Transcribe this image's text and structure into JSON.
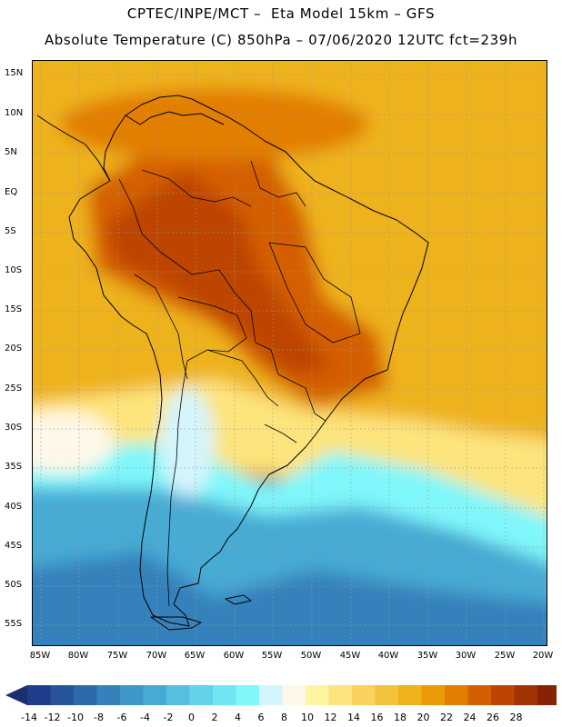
{
  "header": {
    "line1": "CPTEC/INPE/MCT –  Eta Model 15km – GFS",
    "line2": "Absolute Temperature (C) 850hPa – 07/06/2020 12UTC fct=239h"
  },
  "map": {
    "lat_labels": [
      "15N",
      "10N",
      "5N",
      "EQ",
      "5S",
      "10S",
      "15S",
      "20S",
      "25S",
      "30S",
      "35S",
      "40S",
      "45S",
      "50S",
      "55S"
    ],
    "lon_labels": [
      "85W",
      "80W",
      "75W",
      "70W",
      "65W",
      "60W",
      "55W",
      "50W",
      "45W",
      "40W",
      "35W",
      "30W",
      "25W",
      "20W"
    ]
  },
  "colorbar": {
    "labels": [
      "-14",
      "-12",
      "-10",
      "-8",
      "-6",
      "-4",
      "-2",
      "0",
      "2",
      "4",
      "6",
      "8",
      "10",
      "12",
      "14",
      "16",
      "18",
      "20",
      "22",
      "24",
      "26",
      "28"
    ],
    "colors": [
      "#1f3d8a",
      "#27539b",
      "#2d6aac",
      "#3581bb",
      "#3d97c8",
      "#46abd4",
      "#55c0df",
      "#63d3ea",
      "#70e6f2",
      "#7ff7fb",
      "#d4f5fc",
      "#fff8e8",
      "#fff4a0",
      "#fde47c",
      "#f8d25c",
      "#f2c43c",
      "#eeb21c",
      "#eb9b08",
      "#e27e02",
      "#d45f02",
      "#bd4504",
      "#a03204",
      "#852304"
    ],
    "low_color": "#1a2f70",
    "high_color": "#7a1c0a"
  }
}
